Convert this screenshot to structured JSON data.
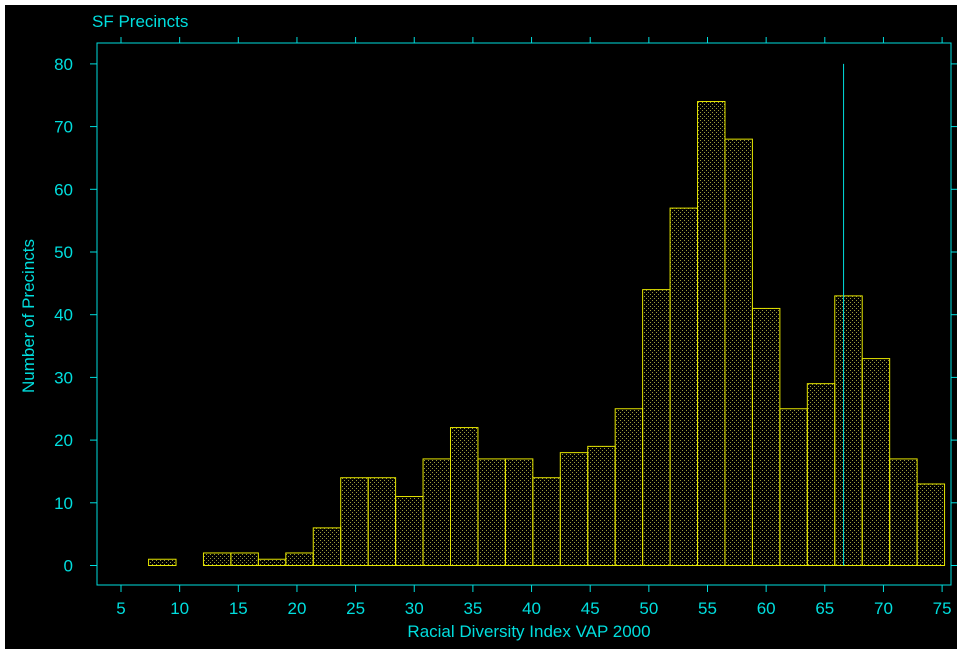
{
  "chart_data": {
    "type": "bar",
    "title": "SF Precincts",
    "xlabel": "Racial Diversity Index VAP 2000",
    "ylabel": "Number of Precincts",
    "xlim": [
      5,
      75
    ],
    "ylim": [
      0,
      80
    ],
    "x_ticks": [
      "5",
      "10",
      "15",
      "20",
      "25",
      "30",
      "35",
      "40",
      "45",
      "50",
      "55",
      "60",
      "65",
      "70",
      "75"
    ],
    "y_ticks": [
      "0",
      "10",
      "20",
      "30",
      "40",
      "50",
      "60",
      "70",
      "80"
    ],
    "bin_width": 2.34,
    "bins": [
      {
        "x0": 7.35,
        "value": 1
      },
      {
        "x0": 12.03,
        "value": 2
      },
      {
        "x0": 14.37,
        "value": 2
      },
      {
        "x0": 16.71,
        "value": 1
      },
      {
        "x0": 19.05,
        "value": 2
      },
      {
        "x0": 21.39,
        "value": 6
      },
      {
        "x0": 23.73,
        "value": 14
      },
      {
        "x0": 26.07,
        "value": 14
      },
      {
        "x0": 28.41,
        "value": 11
      },
      {
        "x0": 30.75,
        "value": 17
      },
      {
        "x0": 33.09,
        "value": 22
      },
      {
        "x0": 35.43,
        "value": 17
      },
      {
        "x0": 37.77,
        "value": 17
      },
      {
        "x0": 40.11,
        "value": 14
      },
      {
        "x0": 42.45,
        "value": 18
      },
      {
        "x0": 44.79,
        "value": 19
      },
      {
        "x0": 47.13,
        "value": 25
      },
      {
        "x0": 49.47,
        "value": 44
      },
      {
        "x0": 51.81,
        "value": 57
      },
      {
        "x0": 54.15,
        "value": 74
      },
      {
        "x0": 56.49,
        "value": 68
      },
      {
        "x0": 58.83,
        "value": 41
      },
      {
        "x0": 61.17,
        "value": 25
      },
      {
        "x0": 63.51,
        "value": 29
      },
      {
        "x0": 65.85,
        "value": 43
      },
      {
        "x0": 68.19,
        "value": 33
      },
      {
        "x0": 70.53,
        "value": 17
      },
      {
        "x0": 72.87,
        "value": 13
      }
    ],
    "reference_line": {
      "x": 66.6,
      "y_top": 80
    },
    "grid": false,
    "colors": {
      "background": "#000000",
      "text": "#00dede",
      "bar_outline": "#e6e600",
      "bar_dots": "#9a9a3a"
    }
  }
}
